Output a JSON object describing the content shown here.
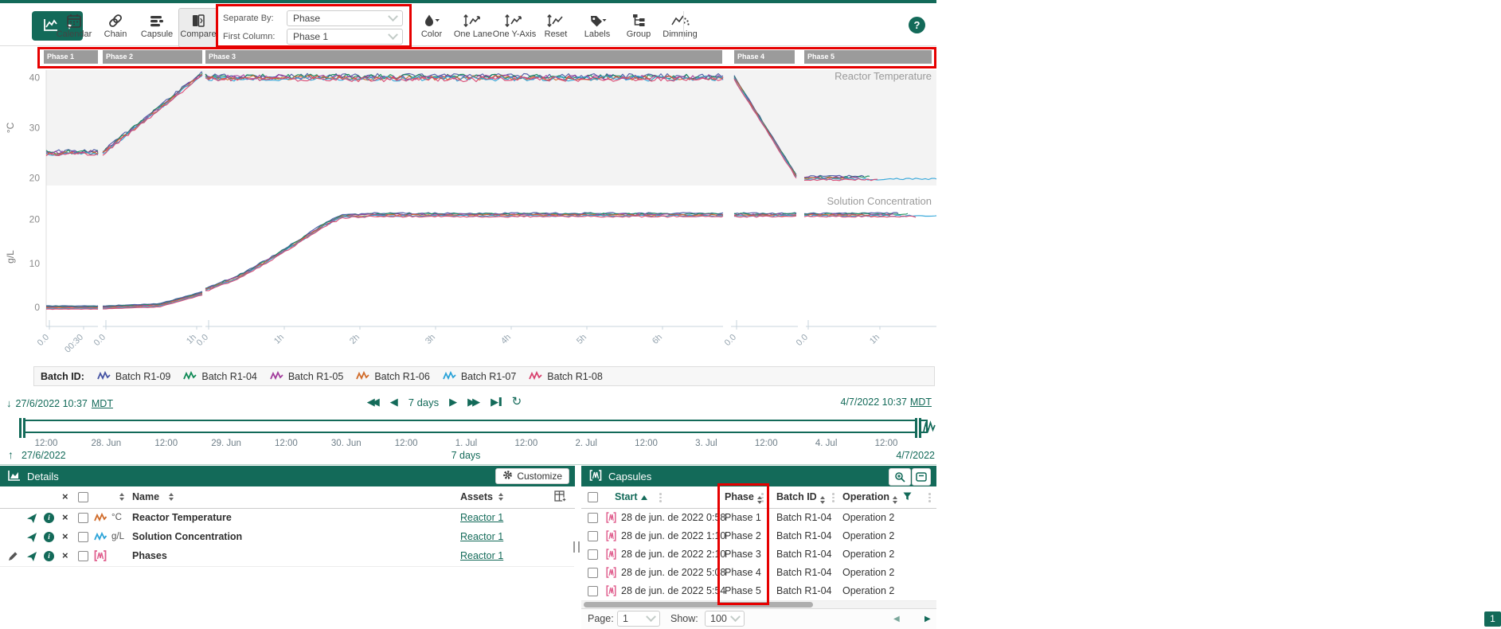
{
  "app": {
    "help_label": "?"
  },
  "toolbar": {
    "nav_buttons": [
      {
        "id": "calendar",
        "label": "Calendar",
        "active": false
      },
      {
        "id": "chain",
        "label": "Chain",
        "active": false
      },
      {
        "id": "capsule",
        "label": "Capsule",
        "active": false
      },
      {
        "id": "compare",
        "label": "Compare",
        "active": true
      }
    ],
    "separate_by_label": "Separate By:",
    "separate_by_value": "Phase",
    "first_column_label": "First Column:",
    "first_column_value": "Phase 1",
    "view_buttons": [
      {
        "id": "color",
        "label": "Color",
        "caret": true
      },
      {
        "id": "one-lane",
        "label": "One Lane",
        "caret": false
      },
      {
        "id": "one-y-axis",
        "label": "One Y-Axis",
        "caret": false
      },
      {
        "id": "reset",
        "label": "Reset",
        "caret": false
      },
      {
        "id": "labels",
        "label": "Labels",
        "caret": true
      },
      {
        "id": "group",
        "label": "Group",
        "caret": false
      },
      {
        "id": "dimming",
        "label": "Dimming",
        "caret": false
      }
    ]
  },
  "chart_data": {
    "type": "line",
    "lanes": [
      {
        "label": "Reactor Temperature",
        "unit": "°C",
        "y_ticks": [
          40,
          30,
          20
        ],
        "ylim": [
          18.5,
          41.5
        ],
        "profile": [
          {
            "phase": "Phase 1",
            "x": [
              58,
              123
            ],
            "pts": [
              [
                58,
                25
              ],
              [
                123,
                25
              ]
            ],
            "noise": 0.4
          },
          {
            "phase": "Phase 2",
            "x": [
              129,
              254
            ],
            "pts": [
              [
                129,
                25
              ],
              [
                250,
                40.3
              ],
              [
                254,
                40.6
              ]
            ],
            "noise": 0.3
          },
          {
            "phase": "Phase 3",
            "x": [
              258,
              908
            ],
            "pts": [
              [
                258,
                40
              ],
              [
                908,
                40
              ]
            ],
            "noise": 0.5
          },
          {
            "phase": "Phase 4",
            "x": [
              922,
              1000
            ],
            "pts": [
              [
                922,
                40
              ],
              [
                1000,
                20.3
              ]
            ],
            "noise": 0.15
          },
          {
            "phase": "Phase 5",
            "x": [
              1010,
              1176
            ],
            "pts": [
              [
                1010,
                20
              ],
              [
                1176,
                20
              ]
            ],
            "noise": 0.22
          }
        ]
      },
      {
        "label": "Solution Concentration",
        "unit": "g/L",
        "y_ticks": [
          20,
          10,
          0
        ],
        "ylim": [
          -2.5,
          25.5
        ],
        "profile": [
          {
            "phase": "Phase 1",
            "x": [
              58,
              123
            ],
            "pts": [
              [
                58,
                0
              ],
              [
                123,
                0
              ]
            ],
            "noise": 0.06
          },
          {
            "phase": "Phase 2",
            "x": [
              129,
              254
            ],
            "pts": [
              [
                129,
                0
              ],
              [
                200,
                0.5
              ],
              [
                254,
                3.2
              ]
            ],
            "noise": 0.06
          },
          {
            "phase": "Phase 3",
            "x": [
              258,
              908
            ],
            "pts": [
              [
                258,
                4
              ],
              [
                300,
                7
              ],
              [
                340,
                11
              ],
              [
                375,
                15
              ],
              [
                405,
                18.5
              ],
              [
                430,
                20.7
              ],
              [
                470,
                21
              ],
              [
                908,
                21
              ]
            ],
            "noise": 0.18
          },
          {
            "phase": "Phase 4",
            "x": [
              922,
              1000
            ],
            "pts": [
              [
                922,
                21
              ],
              [
                1000,
                21
              ]
            ],
            "noise": 0.18
          },
          {
            "phase": "Phase 5",
            "x": [
              1010,
              1176
            ],
            "pts": [
              [
                1010,
                21
              ],
              [
                1176,
                21
              ]
            ],
            "noise": 0.18
          }
        ]
      }
    ],
    "series": [
      {
        "name": "Batch R1-09",
        "color": "#4553a3",
        "end_x": [
          1085,
          1128
        ]
      },
      {
        "name": "Batch R1-04",
        "color": "#0f8a55",
        "end_x": [
          1092,
          1140
        ]
      },
      {
        "name": "Batch R1-05",
        "color": "#a13b9b",
        "end_x": [
          1078,
          1122
        ]
      },
      {
        "name": "Batch R1-06",
        "color": "#d06a28",
        "end_x": [
          1072,
          1118
        ]
      },
      {
        "name": "Batch R1-07",
        "color": "#2aa3d8",
        "end_x": [
          1176,
          1176
        ]
      },
      {
        "name": "Batch R1-08",
        "color": "#d8436f",
        "end_x": [
          1102,
          1150
        ]
      }
    ],
    "phases": [
      {
        "label": "Phase 1",
        "x": [
          55,
          123
        ]
      },
      {
        "label": "Phase 2",
        "x": [
          129,
          254
        ]
      },
      {
        "label": "Phase 3",
        "x": [
          258,
          907
        ]
      },
      {
        "label": "Phase 4",
        "x": [
          922,
          998
        ]
      },
      {
        "label": "Phase 5",
        "x": [
          1010,
          1170
        ]
      }
    ],
    "x_axis": {
      "segments": [
        {
          "range": [
            58,
            123
          ],
          "ticks": [
            {
              "x": 62,
              "label": "0.0"
            },
            {
              "x": 105,
              "label": "00:30"
            }
          ]
        },
        {
          "range": [
            129,
            254
          ],
          "ticks": [
            {
              "x": 133,
              "label": "0.0"
            },
            {
              "x": 247,
              "label": "1h"
            }
          ]
        },
        {
          "range": [
            258,
            908
          ],
          "ticks": [
            {
              "x": 262,
              "label": "0.0"
            },
            {
              "x": 357,
              "label": "1h"
            },
            {
              "x": 452,
              "label": "2h"
            },
            {
              "x": 547,
              "label": "3h"
            },
            {
              "x": 642,
              "label": "4h"
            },
            {
              "x": 737,
              "label": "5h"
            },
            {
              "x": 832,
              "label": "6h"
            }
          ]
        },
        {
          "range": [
            918,
            1002
          ],
          "ticks": [
            {
              "x": 925,
              "label": "0.0"
            }
          ]
        },
        {
          "range": [
            1012,
            1176
          ],
          "ticks": [
            {
              "x": 1015,
              "label": "0.0"
            },
            {
              "x": 1105,
              "label": "1h"
            }
          ]
        }
      ]
    }
  },
  "legend": {
    "title": "Batch ID:",
    "items": [
      {
        "name": "Batch R1-09",
        "color": "#4553a3"
      },
      {
        "name": "Batch R1-04",
        "color": "#0f8a55"
      },
      {
        "name": "Batch R1-05",
        "color": "#a13b9b"
      },
      {
        "name": "Batch R1-06",
        "color": "#d06a28"
      },
      {
        "name": "Batch R1-07",
        "color": "#2aa3d8"
      },
      {
        "name": "Batch R1-08",
        "color": "#d8436f"
      }
    ]
  },
  "range_nav": {
    "start": "27/6/2022 10:37",
    "start_tz": "MDT",
    "end": "4/7/2022 10:37",
    "end_tz": "MDT",
    "duration": "7 days"
  },
  "timeline": {
    "ticks": [
      "12:00",
      "28. Jun",
      "12:00",
      "29. Jun",
      "12:00",
      "30. Jun",
      "12:00",
      "1. Jul",
      "12:00",
      "2. Jul",
      "12:00",
      "3. Jul",
      "12:00",
      "4. Jul",
      "12:00"
    ],
    "start_date": "27/6/2022",
    "duration": "7 days",
    "end_date": "4/7/2022"
  },
  "details_panel": {
    "title": "Details",
    "customize_label": "Customize",
    "name_column": "Name",
    "assets_column": "Assets",
    "rows": [
      {
        "unit": "°C",
        "name": "Reactor Temperature",
        "asset": "Reactor 1",
        "color": "#d06a28",
        "kind": "signal",
        "editable": false
      },
      {
        "unit": "g/L",
        "name": "Solution Concentration",
        "asset": "Reactor 1",
        "color": "#2aa3d8",
        "kind": "signal",
        "editable": false
      },
      {
        "unit": "",
        "name": "Phases",
        "asset": "Reactor 1",
        "color": "#e0608f",
        "kind": "condition",
        "editable": true
      }
    ]
  },
  "capsules_panel": {
    "title": "Capsules",
    "columns": [
      {
        "id": "start",
        "label": "Start",
        "sorted": "asc"
      },
      {
        "id": "phase",
        "label": "Phase",
        "sorted": null
      },
      {
        "id": "batch",
        "label": "Batch ID",
        "sorted": null
      },
      {
        "id": "operation",
        "label": "Operation",
        "sorted": null,
        "filtered": true
      }
    ],
    "rows": [
      {
        "start": "28 de jun. de 2022 0:58",
        "phase": "Phase 1",
        "batch_id": "Batch R1-04",
        "operation": "Operation 2"
      },
      {
        "start": "28 de jun. de 2022 1:10",
        "phase": "Phase 2",
        "batch_id": "Batch R1-04",
        "operation": "Operation 2"
      },
      {
        "start": "28 de jun. de 2022 2:10",
        "phase": "Phase 3",
        "batch_id": "Batch R1-04",
        "operation": "Operation 2"
      },
      {
        "start": "28 de jun. de 2022 5:08",
        "phase": "Phase 4",
        "batch_id": "Batch R1-04",
        "operation": "Operation 2"
      },
      {
        "start": "28 de jun. de 2022 5:54",
        "phase": "Phase 5",
        "batch_id": "Batch R1-04",
        "operation": "Operation 2"
      }
    ],
    "pagination": {
      "page_label": "Page:",
      "page": "1",
      "show_label": "Show:",
      "show": "100",
      "current_page": "1"
    }
  },
  "colors": {
    "teal": "#136a59",
    "annotation_red": "#e60000",
    "phase_bar_gray": "#9b9b9b",
    "lane1_background": "#f3f3f3"
  }
}
